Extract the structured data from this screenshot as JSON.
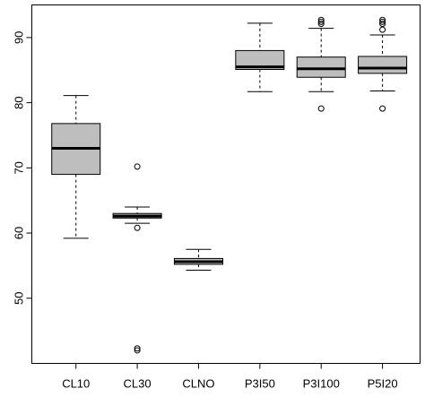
{
  "chart_data": {
    "type": "boxplot",
    "title": "",
    "xlabel": "",
    "ylabel": "",
    "ylim": [
      40,
      95
    ],
    "yticks": [
      50,
      60,
      70,
      80,
      90
    ],
    "grid": false,
    "box_fill": "#bebebe",
    "categories": [
      "CL10",
      "CL30",
      "CLNO",
      "P3I50",
      "P3I100",
      "P5I20"
    ],
    "boxes": [
      {
        "min": 59.2,
        "q1": 69.0,
        "median": 73.0,
        "q3": 76.8,
        "max": 81.1,
        "outliers": []
      },
      {
        "min": 61.5,
        "q1": 62.3,
        "median": 62.6,
        "q3": 63.0,
        "max": 64.0,
        "outliers": [
          70.2,
          60.8,
          42.3,
          42.0
        ]
      },
      {
        "min": 54.3,
        "q1": 55.2,
        "median": 55.6,
        "q3": 56.1,
        "max": 57.5,
        "outliers": []
      },
      {
        "min": 81.7,
        "q1": 85.1,
        "median": 85.5,
        "q3": 88.0,
        "max": 92.2,
        "outliers": []
      },
      {
        "min": 81.7,
        "q1": 83.9,
        "median": 85.2,
        "q3": 87.0,
        "max": 91.4,
        "outliers": [
          92.1,
          92.4,
          92.7,
          79.1
        ]
      },
      {
        "min": 81.8,
        "q1": 84.5,
        "median": 85.3,
        "q3": 87.1,
        "max": 90.4,
        "outliers": [
          91.2,
          92.1,
          92.4,
          92.7,
          79.1
        ]
      }
    ]
  }
}
